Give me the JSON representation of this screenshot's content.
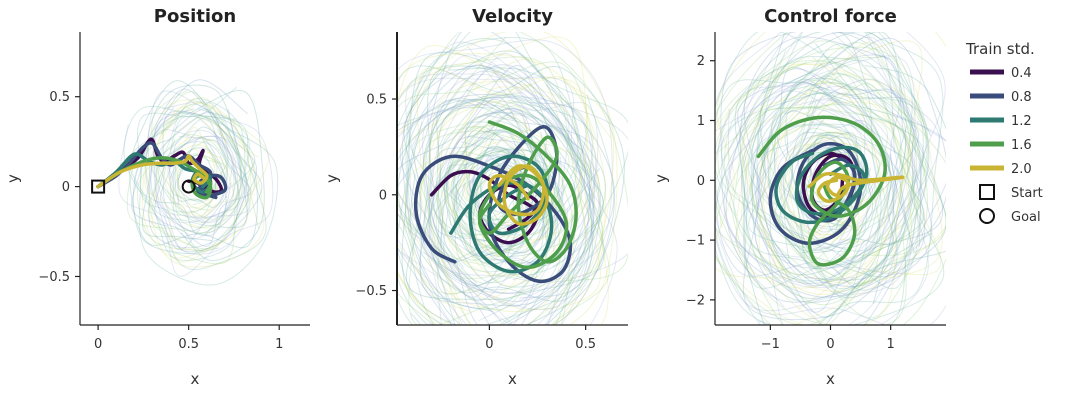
{
  "chart_data": [
    {
      "type": "line",
      "title": "Position",
      "xlabel": "x",
      "ylabel": "y",
      "xlim": [
        -0.1,
        1.17
      ],
      "ylim": [
        -0.77,
        0.86
      ],
      "xticks": [
        0,
        0.5,
        1
      ],
      "xtick_labels": [
        "0",
        "0.5",
        "1"
      ],
      "yticks": [
        -0.5,
        0,
        0.5
      ],
      "ytick_labels": [
        "−0.5",
        "0",
        "0.5"
      ],
      "markers": {
        "start": [
          0,
          0
        ],
        "goal": [
          0.5,
          0
        ]
      },
      "series": [
        {
          "name": "0.4",
          "x": [
            0,
            0.12,
            0.22,
            0.27,
            0.3,
            0.33,
            0.37,
            0.42,
            0.47,
            0.5,
            0.55,
            0.58,
            0.56,
            0.62,
            0.66,
            0.68,
            0.64,
            0.6,
            0.58,
            0.6,
            0.55,
            0.5
          ],
          "y": [
            0,
            0.08,
            0.16,
            0.24,
            0.26,
            0.17,
            0.14,
            0.17,
            0.19,
            0.13,
            0.15,
            0.2,
            0.12,
            0.07,
            0.03,
            -0.02,
            -0.03,
            0.0,
            0.05,
            -0.01,
            0.02,
            0.03
          ]
        },
        {
          "name": "0.8",
          "x": [
            0,
            0.1,
            0.18,
            0.25,
            0.3,
            0.35,
            0.4,
            0.45,
            0.5,
            0.56,
            0.62,
            0.6,
            0.55,
            0.6,
            0.7,
            0.68,
            0.62,
            0.56,
            0.6,
            0.65
          ],
          "y": [
            0,
            0.06,
            0.14,
            0.22,
            0.24,
            0.16,
            0.12,
            0.15,
            0.17,
            0.12,
            0.08,
            0.02,
            -0.02,
            -0.05,
            -0.02,
            0.05,
            0.06,
            0.02,
            -0.04,
            -0.06
          ]
        },
        {
          "name": "1.2",
          "x": [
            0,
            0.1,
            0.2,
            0.28,
            0.35,
            0.42,
            0.48,
            0.55,
            0.62,
            0.58,
            0.52,
            0.55,
            0.62,
            0.58
          ],
          "y": [
            0,
            0.08,
            0.18,
            0.14,
            0.12,
            0.14,
            0.1,
            0.08,
            0.03,
            -0.03,
            0.02,
            0.08,
            0.05,
            0.0
          ]
        },
        {
          "name": "1.6",
          "x": [
            0,
            0.12,
            0.25,
            0.35,
            0.45,
            0.52,
            0.58,
            0.62,
            0.6,
            0.54,
            0.52,
            0.56,
            0.62,
            0.6
          ],
          "y": [
            0,
            0.08,
            0.14,
            0.16,
            0.14,
            0.1,
            0.06,
            0.0,
            -0.06,
            -0.04,
            0.02,
            0.06,
            0.02,
            -0.03
          ]
        },
        {
          "name": "2.0",
          "x": [
            0,
            0.12,
            0.24,
            0.34,
            0.42,
            0.48,
            0.5,
            0.52,
            0.56,
            0.6,
            0.57,
            0.53,
            0.55,
            0.58
          ],
          "y": [
            0,
            0.08,
            0.12,
            0.13,
            0.13,
            0.14,
            0.17,
            0.14,
            0.1,
            0.06,
            0.02,
            0.04,
            0.07,
            0.05
          ]
        }
      ]
    },
    {
      "type": "line",
      "title": "Velocity",
      "xlabel": "x",
      "ylabel": "y",
      "xlim": [
        -0.48,
        0.72
      ],
      "ylim": [
        -0.68,
        0.85
      ],
      "xticks": [
        0,
        0.5
      ],
      "xtick_labels": [
        "0",
        "0.5"
      ],
      "yticks": [
        -0.5,
        0,
        0.5
      ],
      "ytick_labels": [
        "−0.5",
        "0",
        "0.5"
      ],
      "series": [
        {
          "name": "0.4",
          "x": [
            -0.3,
            -0.2,
            -0.1,
            0.0,
            0.1,
            0.2,
            0.25,
            0.2,
            0.1,
            0.0,
            -0.05,
            0.0,
            0.1,
            0.2,
            0.25,
            0.2,
            0.1
          ],
          "y": [
            0.0,
            0.1,
            0.12,
            0.08,
            0.0,
            -0.05,
            -0.1,
            -0.2,
            -0.25,
            -0.2,
            -0.1,
            0.0,
            0.05,
            0.0,
            -0.05,
            -0.12,
            -0.18
          ]
        },
        {
          "name": "0.8",
          "x": [
            -0.18,
            -0.3,
            -0.38,
            -0.35,
            -0.2,
            0.0,
            0.2,
            0.35,
            0.42,
            0.38,
            0.25,
            0.1,
            0.0,
            0.05,
            0.2,
            0.3,
            0.35,
            0.3,
            0.15,
            0.05,
            0.1,
            0.2
          ],
          "y": [
            -0.35,
            -0.28,
            -0.1,
            0.1,
            0.2,
            0.15,
            0.05,
            -0.1,
            -0.25,
            -0.4,
            -0.45,
            -0.35,
            -0.15,
            0.1,
            0.3,
            0.35,
            0.2,
            0.0,
            -0.1,
            -0.05,
            0.1,
            0.15
          ]
        },
        {
          "name": "1.2",
          "x": [
            -0.2,
            -0.1,
            0.05,
            0.2,
            0.3,
            0.32,
            0.25,
            0.1,
            -0.05,
            -0.1,
            -0.05,
            0.1,
            0.25,
            0.3,
            0.2,
            0.05,
            0.0,
            0.1,
            0.2
          ],
          "y": [
            -0.2,
            -0.05,
            0.05,
            0.05,
            -0.05,
            -0.2,
            -0.35,
            -0.4,
            -0.3,
            -0.1,
            0.1,
            0.2,
            0.15,
            0.0,
            -0.15,
            -0.2,
            -0.1,
            0.0,
            0.05
          ]
        },
        {
          "name": "1.6",
          "x": [
            0.0,
            0.15,
            0.3,
            0.42,
            0.45,
            0.4,
            0.3,
            0.2,
            0.15,
            0.2,
            0.3,
            0.35,
            0.25,
            0.1,
            0.0,
            -0.05,
            0.05,
            0.2,
            0.32,
            0.4,
            0.35,
            0.2,
            0.05,
            -0.05,
            0.0
          ],
          "y": [
            0.38,
            0.32,
            0.2,
            0.05,
            -0.12,
            -0.28,
            -0.35,
            -0.25,
            -0.05,
            0.15,
            0.3,
            0.2,
            0.05,
            -0.1,
            -0.2,
            -0.1,
            0.05,
            0.1,
            0.0,
            -0.15,
            -0.3,
            -0.38,
            -0.3,
            -0.15,
            -0.05
          ]
        },
        {
          "name": "2.0",
          "x": [
            0.05,
            0.15,
            0.25,
            0.3,
            0.25,
            0.15,
            0.08,
            0.1,
            0.2,
            0.28,
            0.25,
            0.15,
            0.05,
            0.0,
            0.05,
            0.15,
            0.2
          ],
          "y": [
            0.05,
            0.15,
            0.1,
            -0.02,
            -0.12,
            -0.15,
            -0.05,
            0.08,
            0.15,
            0.05,
            -0.08,
            -0.1,
            -0.05,
            0.05,
            0.1,
            0.05,
            -0.02
          ]
        }
      ]
    },
    {
      "type": "line",
      "title": "Control force",
      "xlabel": "x",
      "ylabel": "y",
      "xlim": [
        -1.92,
        1.92
      ],
      "ylim": [
        -2.42,
        2.48
      ],
      "xticks": [
        -1,
        0,
        1
      ],
      "xtick_labels": [
        "−1",
        "0",
        "1"
      ],
      "yticks": [
        -2,
        -1,
        0,
        1,
        2
      ],
      "ytick_labels": [
        "−2",
        "−1",
        "0",
        "1",
        "2"
      ],
      "series": [
        {
          "name": "0.4",
          "x": [
            0.3,
            0.0,
            -0.3,
            -0.45,
            -0.35,
            -0.05,
            0.25,
            0.4,
            0.3,
            0.0,
            -0.25,
            -0.3,
            -0.1,
            0.15,
            0.2
          ],
          "y": [
            0.3,
            0.45,
            0.3,
            -0.05,
            -0.45,
            -0.6,
            -0.4,
            0.0,
            0.35,
            0.4,
            0.1,
            -0.3,
            -0.5,
            -0.3,
            0.0
          ]
        },
        {
          "name": "0.8",
          "x": [
            -0.3,
            -0.8,
            -1.0,
            -0.85,
            -0.4,
            0.1,
            0.4,
            0.5,
            0.3,
            -0.1,
            -0.45,
            -0.55,
            -0.3,
            0.05,
            0.3,
            0.4,
            0.2,
            -0.1
          ],
          "y": [
            0.5,
            0.2,
            -0.3,
            -0.8,
            -1.05,
            -0.9,
            -0.5,
            0.0,
            0.5,
            0.6,
            0.3,
            -0.2,
            -0.6,
            -0.65,
            -0.3,
            0.1,
            0.35,
            0.25
          ]
        },
        {
          "name": "1.2",
          "x": [
            -0.3,
            -0.65,
            -0.9,
            -0.8,
            -0.4,
            0.05,
            0.4,
            0.6,
            0.5,
            0.2,
            -0.2,
            -0.5,
            -0.55,
            -0.3,
            0.1,
            0.45,
            0.55,
            0.3,
            0.0
          ],
          "y": [
            0.45,
            0.3,
            -0.1,
            -0.5,
            -0.7,
            -0.6,
            -0.3,
            0.1,
            0.45,
            0.55,
            0.4,
            0.05,
            -0.35,
            -0.55,
            -0.5,
            -0.2,
            0.1,
            0.25,
            0.1
          ]
        },
        {
          "name": "1.6",
          "x": [
            -1.2,
            -0.8,
            -0.2,
            0.4,
            0.8,
            0.9,
            0.6,
            0.1,
            -0.3,
            -0.2,
            0.1,
            0.3,
            0.1,
            -0.2,
            -0.35,
            -0.2,
            0.2,
            0.4,
            0.3,
            0.0,
            -0.1
          ],
          "y": [
            0.4,
            0.85,
            1.05,
            0.95,
            0.6,
            0.1,
            -0.4,
            -0.6,
            -0.35,
            0.1,
            0.3,
            0.0,
            -0.4,
            -0.7,
            -1.05,
            -1.4,
            -1.3,
            -0.9,
            -0.5,
            -0.3,
            -0.1
          ]
        },
        {
          "name": "2.0",
          "x": [
            -0.35,
            -0.1,
            0.2,
            0.5,
            1.2,
            0.3,
            0.1,
            -0.05,
            0.1,
            0.3,
            0.2,
            -0.05,
            -0.2,
            -0.1,
            0.1
          ],
          "y": [
            -0.1,
            0.1,
            0.08,
            0.0,
            0.05,
            -0.08,
            -0.25,
            -0.1,
            0.05,
            -0.05,
            -0.25,
            -0.35,
            -0.2,
            -0.05,
            0.0
          ]
        }
      ]
    }
  ],
  "legend": {
    "title": "Train std.",
    "placement": "right",
    "items": [
      "0.4",
      "0.8",
      "1.2",
      "1.6",
      "2.0"
    ],
    "colors": [
      "#3b0f4f",
      "#3a4d7a",
      "#2e7a72",
      "#4f9e4c",
      "#c9b533"
    ],
    "markers": [
      {
        "label": "Start",
        "shape": "square"
      },
      {
        "label": "Goal",
        "shape": "circle"
      }
    ]
  }
}
